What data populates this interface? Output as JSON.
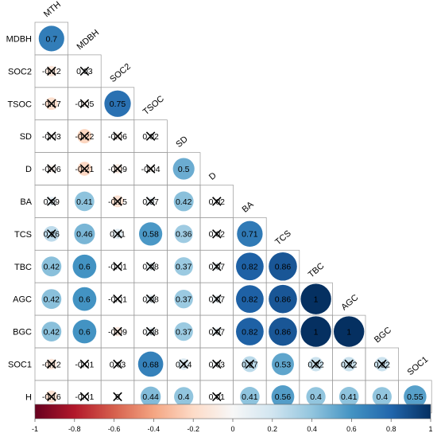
{
  "chart_data": {
    "type": "heatmap",
    "subtype": "correlation-matrix-lower-triangle",
    "variables": [
      "MTH",
      "MDBH",
      "SOC2",
      "TSOC",
      "SD",
      "D",
      "BA",
      "TCS",
      "TBC",
      "AGC",
      "BGC",
      "SOC1",
      "H"
    ],
    "row_labels": [
      "MDBH",
      "SOC2",
      "TSOC",
      "SD",
      "D",
      "BA",
      "TCS",
      "TBC",
      "AGC",
      "BGC",
      "SOC1",
      "H"
    ],
    "column_labels": [
      "MTH",
      "MDBH",
      "SOC2",
      "TSOC",
      "SD",
      "D",
      "BA",
      "TCS",
      "TBC",
      "AGC",
      "BGC",
      "SOC1"
    ],
    "matrix": [
      [
        0.7
      ],
      [
        -0.12,
        0.03
      ],
      [
        -0.17,
        -0.05,
        0.75
      ],
      [
        -0.03,
        -0.22,
        -0.06,
        0.02
      ],
      [
        -0.06,
        -0.21,
        -0.09,
        -0.04,
        0.5
      ],
      [
        0.09,
        0.41,
        -0.15,
        0.07,
        0.42,
        0.02
      ],
      [
        0.26,
        0.46,
        0.11,
        0.58,
        0.36,
        0.02,
        0.71
      ],
      [
        0.42,
        0.6,
        -0.01,
        0.08,
        0.37,
        0.07,
        0.82,
        0.86
      ],
      [
        0.42,
        0.6,
        -0.01,
        0.08,
        0.37,
        0.07,
        0.82,
        0.86,
        1
      ],
      [
        0.42,
        0.6,
        -0.09,
        0.08,
        0.37,
        0.07,
        0.82,
        0.86,
        1,
        1
      ],
      [
        -0.12,
        -0.01,
        0.03,
        0.68,
        0.14,
        0.03,
        0.27,
        0.53,
        0.22,
        0.22,
        0.22
      ],
      [
        -0.16,
        -0.01,
        0,
        0.44,
        0.4,
        0.01,
        0.41,
        0.56,
        0.4,
        0.41,
        0.4,
        0.55
      ]
    ],
    "labels": [
      [
        "0.7"
      ],
      [
        "-0.12",
        "0.03"
      ],
      [
        "-0.17",
        "-0.05",
        "0.75"
      ],
      [
        "-0.03",
        "-0.22",
        "-0.06",
        "0.02"
      ],
      [
        "-0.06",
        "-0.21",
        "-0.09",
        "-0.04",
        "0.5"
      ],
      [
        "0.09",
        "0.41",
        "-0.15",
        "0.07",
        "0.42",
        "0.02"
      ],
      [
        "0.26",
        "0.46",
        "0.11",
        "0.58",
        "0.36",
        "0.02",
        "0.71"
      ],
      [
        "0.42",
        "0.6",
        "-0.01",
        "0.08",
        "0.37",
        "0.07",
        "0.82",
        "0.86"
      ],
      [
        "0.42",
        "0.6",
        "-0.01",
        "0.08",
        "0.37",
        "0.07",
        "0.82",
        "0.86",
        "1"
      ],
      [
        "0.42",
        "0.6",
        "-0.09",
        "0.08",
        "0.37",
        "0.07",
        "0.82",
        "0.86",
        "1",
        "1"
      ],
      [
        "-0.12",
        "-0.01",
        "0.03",
        "0.68",
        "0.14",
        "0.03",
        "0.27",
        "0.53",
        "0.22",
        "0.22",
        "0.22"
      ],
      [
        "-0.16",
        "-0.01",
        "0",
        "0.44",
        "0.4",
        "0.01",
        "0.41",
        "0.56",
        "0.4",
        "0.41",
        "0.4",
        "0.55"
      ]
    ],
    "insignificant": [
      [
        false
      ],
      [
        true,
        true
      ],
      [
        true,
        true,
        false
      ],
      [
        true,
        true,
        true,
        true
      ],
      [
        true,
        true,
        true,
        true,
        false
      ],
      [
        true,
        false,
        true,
        true,
        false,
        true
      ],
      [
        true,
        false,
        true,
        false,
        false,
        true,
        false
      ],
      [
        false,
        false,
        true,
        true,
        false,
        true,
        false,
        false
      ],
      [
        false,
        false,
        true,
        true,
        false,
        true,
        false,
        false,
        false
      ],
      [
        false,
        false,
        true,
        true,
        false,
        true,
        false,
        false,
        false,
        false
      ],
      [
        true,
        true,
        true,
        false,
        true,
        true,
        true,
        false,
        true,
        true,
        true
      ],
      [
        true,
        true,
        true,
        false,
        false,
        true,
        false,
        false,
        false,
        false,
        false,
        false
      ]
    ],
    "color_scale": {
      "range": [
        -1,
        1
      ],
      "ticks": [
        "-1",
        "-0.8",
        "-0.6",
        "-0.4",
        "-0.2",
        "0",
        "0.2",
        "0.4",
        "0.6",
        "0.8",
        "1"
      ],
      "palette": [
        "#67001f",
        "#b2182b",
        "#d6604d",
        "#f4a582",
        "#fddbc7",
        "#f7f7f7",
        "#d1e5f0",
        "#92c5de",
        "#4393c3",
        "#2166ac",
        "#053061"
      ]
    },
    "legend_position": "bottom",
    "grid": true
  }
}
